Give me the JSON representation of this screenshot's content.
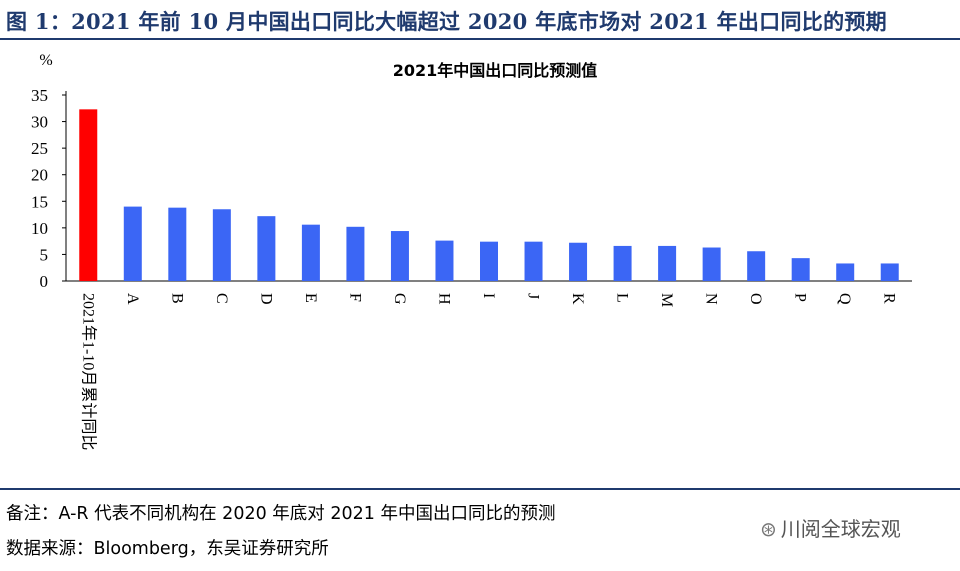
{
  "figure_title": "图 1：2021 年前 10 月中国出口同比大幅超过 2020 年底市场对 2021 年出口同比的预期",
  "note": "备注：A-R 代表不同机构在 2020 年底对 2021 年中国出口同比的预测",
  "source": "数据来源：Bloomberg，东吴证券研究所",
  "watermark": "川阅全球宏观",
  "watermark_icon": "wechat-icon",
  "colors": {
    "highlight_bar": "#ff0000",
    "bar": "#3b66f5",
    "rule": "#1f3a6e"
  },
  "chart_data": {
    "type": "bar",
    "title": "2021年中国出口同比预测值",
    "ylabel": "%",
    "ylim": [
      0,
      35
    ],
    "yticks": [
      0,
      5,
      10,
      15,
      20,
      25,
      30,
      35
    ],
    "grid": false,
    "categories": [
      "2021年1-10月累计同比",
      "A",
      "B",
      "C",
      "D",
      "E",
      "F",
      "G",
      "H",
      "I",
      "J",
      "K",
      "L",
      "M",
      "N",
      "O",
      "P",
      "Q",
      "R"
    ],
    "values": [
      32.3,
      14.0,
      13.8,
      13.5,
      12.2,
      10.6,
      10.2,
      9.4,
      7.6,
      7.4,
      7.4,
      7.2,
      6.6,
      6.6,
      6.3,
      5.6,
      4.3,
      3.3,
      3.3
    ],
    "highlight_index": 0
  }
}
